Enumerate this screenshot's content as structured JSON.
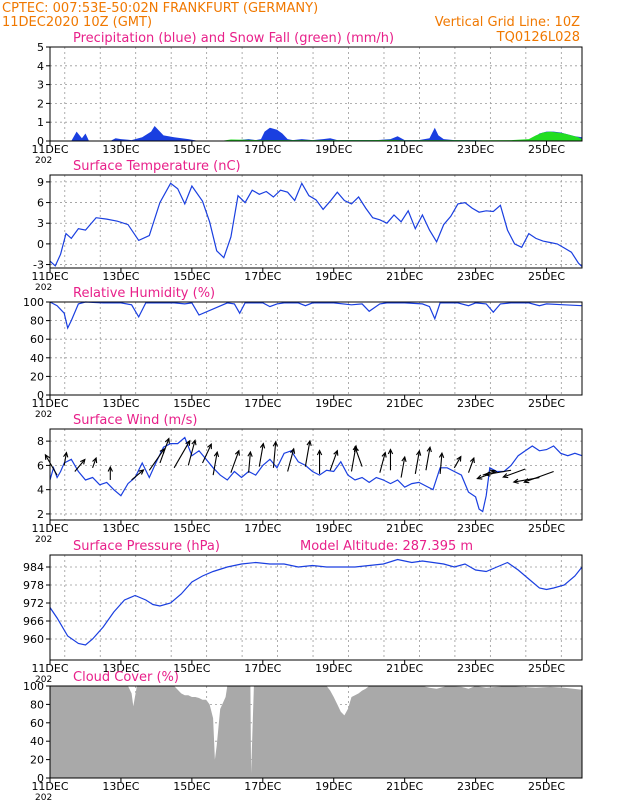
{
  "header": {
    "line1": "CPTEC:   007:53E-50:02N   FRANKFURT (GERMANY)",
    "line2": "11DEC2020 10Z (GMT)",
    "vgrid": "Vertical Grid Line: 10Z",
    "code": "TQ0126L028"
  },
  "colors": {
    "header": "#f07800",
    "title": "#e8208a",
    "line": "#1a3fe0",
    "rain": "#1a3fe0",
    "snow": "#22dd22",
    "cloud": "#a9a9a9",
    "grid": "#999999"
  },
  "x_axis": {
    "date_labels": [
      "11DEC",
      "13DEC",
      "15DEC",
      "17DEC",
      "19DEC",
      "21DEC",
      "23DEC",
      "25DEC"
    ],
    "date_days": [
      11,
      13,
      15,
      17,
      19,
      21,
      23,
      25
    ],
    "range_days": [
      11,
      26
    ],
    "stub_label": "202"
  },
  "chart_data": [
    {
      "type": "area",
      "title": "Precipitation (blue) and Snow Fall (green) (mm/h)",
      "ylim": [
        0,
        5
      ],
      "yticks": [
        "0",
        "1",
        "2",
        "3",
        "4",
        "5"
      ],
      "series": [
        {
          "name": "Precipitation",
          "x": [
            11,
            11.6,
            11.75,
            11.9,
            12.0,
            12.1,
            12.7,
            12.85,
            13.0,
            13.3,
            13.6,
            13.85,
            13.95,
            14.05,
            14.2,
            14.5,
            14.9,
            15.2,
            16.1,
            16.3,
            16.6,
            16.8,
            16.95,
            17.05,
            17.2,
            17.4,
            17.55,
            17.7,
            17.85,
            18.1,
            18.4,
            18.7,
            18.9,
            19.1,
            19.5,
            20.2,
            20.6,
            20.8,
            21.0,
            21.4,
            21.7,
            21.85,
            21.95,
            22.1,
            22.4,
            23.0,
            23.5,
            24.0,
            24.4,
            24.6,
            24.8,
            25.0,
            25.2,
            25.4,
            25.6,
            25.8,
            26.0
          ],
          "y": [
            0,
            0,
            0.5,
            0.15,
            0.4,
            0,
            0,
            0.15,
            0.1,
            0.05,
            0.2,
            0.5,
            0.8,
            0.6,
            0.3,
            0.2,
            0.1,
            0,
            0,
            0.05,
            0.1,
            0.05,
            0.1,
            0.5,
            0.7,
            0.6,
            0.4,
            0.1,
            0.05,
            0.1,
            0.05,
            0.1,
            0.15,
            0.05,
            0.05,
            0.05,
            0.1,
            0.25,
            0.05,
            0.05,
            0.15,
            0.7,
            0.3,
            0.1,
            0.05,
            0.05,
            0,
            0,
            0.05,
            0.1,
            0.4,
            0.5,
            0.5,
            0.45,
            0.35,
            0.25,
            0.2
          ]
        },
        {
          "name": "Snow Fall",
          "x": [
            11,
            15.8,
            16.1,
            16.6,
            17.0,
            18.0,
            19.0,
            20.0,
            20.6,
            21.0,
            21.5,
            22.5,
            23.0,
            24.0,
            24.5,
            24.7,
            24.9,
            25.1,
            25.3,
            25.5,
            25.7,
            25.9,
            26.0
          ],
          "y": [
            0,
            0,
            0.08,
            0.06,
            0.05,
            0.05,
            0.05,
            0.05,
            0.06,
            0.04,
            0.05,
            0.05,
            0.04,
            0.05,
            0.1,
            0.3,
            0.45,
            0.5,
            0.45,
            0.4,
            0.3,
            0.2,
            0.1
          ]
        }
      ]
    },
    {
      "type": "line",
      "title": "Surface Temperature (nC)",
      "ylim": [
        -3.5,
        10
      ],
      "yticks": [
        "-3",
        "0",
        "3",
        "6",
        "9"
      ],
      "ytick_values": [
        -3,
        0,
        3,
        6,
        9
      ],
      "x": [
        11,
        11.15,
        11.3,
        11.45,
        11.6,
        11.8,
        12.0,
        12.3,
        12.6,
        12.9,
        13.2,
        13.5,
        13.8,
        14.1,
        14.4,
        14.6,
        14.8,
        15.0,
        15.3,
        15.5,
        15.7,
        15.9,
        16.1,
        16.3,
        16.5,
        16.7,
        16.9,
        17.1,
        17.3,
        17.5,
        17.7,
        17.9,
        18.1,
        18.3,
        18.5,
        18.7,
        18.9,
        19.1,
        19.3,
        19.5,
        19.7,
        19.9,
        20.1,
        20.3,
        20.5,
        20.7,
        20.9,
        21.1,
        21.3,
        21.5,
        21.7,
        21.9,
        22.1,
        22.3,
        22.5,
        22.7,
        22.9,
        23.1,
        23.3,
        23.5,
        23.7,
        23.9,
        24.1,
        24.3,
        24.5,
        24.7,
        24.9,
        25.1,
        25.3,
        25.5,
        25.7,
        25.9,
        26.0
      ],
      "y": [
        -2.5,
        -3.2,
        -1.5,
        1.5,
        0.8,
        2.2,
        2.0,
        3.8,
        3.6,
        3.3,
        2.8,
        0.5,
        1.2,
        6.0,
        8.8,
        8.0,
        5.8,
        8.4,
        6.2,
        3.2,
        -1.0,
        -2.0,
        1.0,
        7.0,
        6.0,
        7.8,
        7.2,
        7.6,
        6.8,
        7.8,
        7.5,
        6.3,
        8.8,
        7.0,
        6.4,
        5.0,
        6.2,
        7.5,
        6.3,
        5.8,
        6.8,
        5.2,
        3.8,
        3.5,
        3.0,
        4.2,
        3.2,
        4.8,
        2.2,
        4.2,
        2.0,
        0.3,
        2.8,
        4.0,
        5.8,
        6.0,
        5.2,
        4.6,
        4.8,
        4.7,
        5.6,
        2.0,
        0.0,
        -0.5,
        1.5,
        0.8,
        0.4,
        0.2,
        0.0,
        -0.6,
        -1.2,
        -2.8,
        -3.3
      ]
    },
    {
      "type": "line",
      "title": "Relative Humidity (%)",
      "ylim": [
        0,
        100
      ],
      "yticks": [
        "0",
        "20",
        "40",
        "60",
        "80",
        "100"
      ],
      "ytick_values": [
        0,
        20,
        40,
        60,
        80,
        100
      ],
      "x": [
        11,
        11.2,
        11.4,
        11.5,
        11.6,
        11.8,
        12,
        12.5,
        13,
        13.3,
        13.5,
        13.7,
        14,
        14.5,
        14.8,
        15,
        15.2,
        16,
        16.2,
        16.35,
        16.5,
        17,
        17.2,
        17.4,
        17.6,
        18,
        18.2,
        18.4,
        18.6,
        19,
        19.5,
        19.8,
        20,
        20.3,
        20.5,
        21,
        21.5,
        21.7,
        21.85,
        22,
        22.5,
        22.8,
        23,
        23.3,
        23.5,
        23.7,
        24,
        24.5,
        24.8,
        25,
        25.5,
        26
      ],
      "y": [
        100,
        96,
        88,
        72,
        80,
        98,
        100,
        99,
        99,
        97,
        84,
        99,
        99,
        99,
        98,
        99,
        86,
        99,
        98,
        88,
        99,
        99,
        95,
        98,
        99,
        99,
        96,
        99,
        99,
        99,
        97,
        98,
        90,
        98,
        99,
        99,
        98,
        95,
        82,
        99,
        99,
        96,
        99,
        98,
        89,
        98,
        99,
        99,
        96,
        98,
        97,
        96
      ]
    },
    {
      "type": "line",
      "title": "Surface Wind (m/s)",
      "ylim": [
        1.5,
        9
      ],
      "yticks": [
        "2",
        "4",
        "6",
        "8"
      ],
      "ytick_values": [
        2,
        4,
        6,
        8
      ],
      "x": [
        11,
        11.1,
        11.2,
        11.3,
        11.4,
        11.6,
        11.8,
        12.0,
        12.2,
        12.4,
        12.6,
        12.8,
        13.0,
        13.2,
        13.4,
        13.6,
        13.8,
        14.0,
        14.2,
        14.4,
        14.6,
        14.8,
        15.0,
        15.2,
        15.4,
        15.6,
        15.8,
        16.0,
        16.2,
        16.4,
        16.6,
        16.8,
        17.0,
        17.2,
        17.4,
        17.6,
        17.8,
        18.0,
        18.2,
        18.4,
        18.6,
        18.8,
        19.0,
        19.2,
        19.4,
        19.6,
        19.8,
        20.0,
        20.2,
        20.4,
        20.6,
        20.8,
        21.0,
        21.2,
        21.4,
        21.6,
        21.8,
        22.0,
        22.2,
        22.4,
        22.6,
        22.8,
        23.0,
        23.1,
        23.2,
        23.3,
        23.4,
        23.6,
        23.8,
        24.0,
        24.2,
        24.4,
        24.6,
        24.8,
        25.0,
        25.2,
        25.4,
        25.6,
        25.8,
        26.0
      ],
      "y": [
        4.8,
        5.8,
        5.0,
        5.5,
        6.2,
        6.5,
        5.5,
        4.8,
        5.0,
        4.4,
        4.6,
        4.0,
        3.5,
        4.5,
        5.0,
        6.2,
        5.0,
        6.3,
        7.5,
        7.8,
        7.8,
        8.3,
        6.8,
        7.2,
        6.5,
        5.8,
        5.2,
        4.8,
        5.5,
        5.0,
        5.5,
        5.2,
        6.0,
        6.5,
        5.8,
        7.0,
        7.2,
        6.3,
        6.0,
        5.5,
        5.2,
        5.6,
        5.5,
        6.3,
        5.2,
        4.8,
        5.0,
        4.6,
        5.0,
        4.8,
        4.5,
        4.8,
        4.2,
        4.5,
        4.6,
        4.3,
        4.0,
        5.8,
        5.8,
        5.5,
        5.2,
        3.8,
        3.4,
        2.4,
        2.2,
        3.5,
        5.8,
        5.5,
        5.5,
        6.0,
        6.8,
        7.2,
        7.6,
        7.2,
        7.3,
        7.6,
        7.0,
        6.8,
        7.0,
        6.8
      ],
      "arrows_x": [
        11.2,
        11.4,
        11.7,
        12.2,
        12.7,
        13.3,
        13.8,
        14.1,
        14.5,
        14.9,
        15.3,
        15.6,
        16.1,
        16.6,
        16.9,
        17.3,
        17.7,
        18.2,
        18.6,
        18.9,
        19.5,
        19.8,
        20.3,
        20.6,
        20.9,
        21.3,
        21.6,
        22.0,
        22.4,
        22.8,
        23.2,
        23.6,
        24.0,
        24.4,
        24.8,
        25.2
      ],
      "arrows_y": [
        5.2,
        6.0,
        5.5,
        5.8,
        4.8,
        4.8,
        5.6,
        6.2,
        5.8,
        6.0,
        6.2,
        5.2,
        5.4,
        5.4,
        5.9,
        5.8,
        5.5,
        5.9,
        5.3,
        5.6,
        5.5,
        5.9,
        5.4,
        5.6,
        5.0,
        5.3,
        5.6,
        5.3,
        5.8,
        5.4,
        5.2,
        5.5,
        5.6,
        5.7,
        5.0,
        5.5
      ],
      "arrows_len": [
        0.9,
        0.5,
        0.6,
        0.4,
        0.5,
        0.6,
        1.0,
        1.0,
        1.2,
        1.0,
        0.8,
        0.9,
        0.9,
        0.8,
        0.9,
        1.0,
        0.9,
        1.0,
        0.9,
        0.8,
        1.0,
        0.8,
        0.8,
        0.8,
        0.8,
        0.9,
        0.9,
        0.8,
        0.5,
        0.6,
        0.5,
        0.8,
        1.0,
        0.9,
        1.0,
        1.2
      ],
      "arrows_dir": [
        120,
        80,
        50,
        70,
        90,
        40,
        55,
        70,
        60,
        75,
        65,
        80,
        70,
        85,
        80,
        85,
        75,
        80,
        90,
        70,
        80,
        110,
        75,
        90,
        80,
        80,
        80,
        85,
        60,
        70,
        20,
        200,
        190,
        200,
        190,
        200
      ]
    },
    {
      "type": "line",
      "title": "Surface Pressure (hPa)",
      "subtitle": "Model Altitude: 287.395 m",
      "ylim": [
        953,
        988
      ],
      "yticks": [
        "960",
        "966",
        "972",
        "978",
        "984"
      ],
      "ytick_values": [
        960,
        966,
        972,
        978,
        984
      ],
      "x": [
        11,
        11.2,
        11.5,
        11.8,
        12.0,
        12.2,
        12.5,
        12.8,
        13.1,
        13.4,
        13.7,
        13.9,
        14.1,
        14.4,
        14.7,
        15.0,
        15.3,
        15.6,
        16.0,
        16.4,
        16.8,
        17.2,
        17.6,
        18.0,
        18.4,
        18.8,
        19.2,
        19.6,
        20.0,
        20.4,
        20.8,
        21.0,
        21.2,
        21.5,
        21.8,
        22.1,
        22.4,
        22.7,
        23.0,
        23.3,
        23.6,
        23.9,
        24.2,
        24.5,
        24.8,
        25.0,
        25.2,
        25.5,
        25.8,
        26.0
      ],
      "y": [
        970.5,
        967,
        961,
        958.5,
        958,
        960,
        964,
        969,
        973,
        974.5,
        973,
        971.5,
        971,
        972,
        975,
        979,
        981,
        982.5,
        984,
        985,
        985.5,
        985,
        985,
        984,
        984.5,
        984,
        984,
        984,
        984.5,
        985,
        986.5,
        986,
        985.5,
        986,
        985.5,
        985,
        984,
        985,
        983,
        982.5,
        984,
        985.5,
        983,
        980,
        977,
        976.5,
        977,
        978,
        981,
        984
      ]
    },
    {
      "type": "area",
      "title": "Cloud Cover (%)",
      "ylim": [
        0,
        100
      ],
      "yticks": [
        "0",
        "20",
        "40",
        "60",
        "80",
        "100"
      ],
      "ytick_values": [
        0,
        20,
        40,
        60,
        80,
        100
      ],
      "x": [
        11,
        13.2,
        13.3,
        13.35,
        13.45,
        14.5,
        14.6,
        14.7,
        14.8,
        14.9,
        15.0,
        15.1,
        15.2,
        15.3,
        15.4,
        15.5,
        15.6,
        15.65,
        15.7,
        15.8,
        15.95,
        16.0,
        16.1,
        16.65,
        16.67,
        16.75,
        16.8,
        18.8,
        18.9,
        19.0,
        19.1,
        19.2,
        19.3,
        19.4,
        19.5,
        19.6,
        19.7,
        19.8,
        19.9,
        20.0,
        21.5,
        21.7,
        21.9,
        22.2,
        22.6,
        22.8,
        23.0,
        23.3,
        23.6,
        23.9,
        24.3,
        24.7,
        25.1,
        25.5,
        26.0
      ],
      "y": [
        100,
        100,
        92,
        78,
        100,
        100,
        96,
        92,
        90,
        90,
        88,
        88,
        87,
        85,
        85,
        80,
        65,
        20,
        35,
        75,
        88,
        100,
        100,
        100,
        5,
        100,
        100,
        100,
        95,
        88,
        80,
        72,
        68,
        75,
        88,
        90,
        92,
        95,
        97,
        100,
        100,
        98,
        97,
        100,
        99,
        97,
        100,
        98,
        99,
        100,
        99,
        98,
        99,
        98,
        96
      ]
    }
  ]
}
